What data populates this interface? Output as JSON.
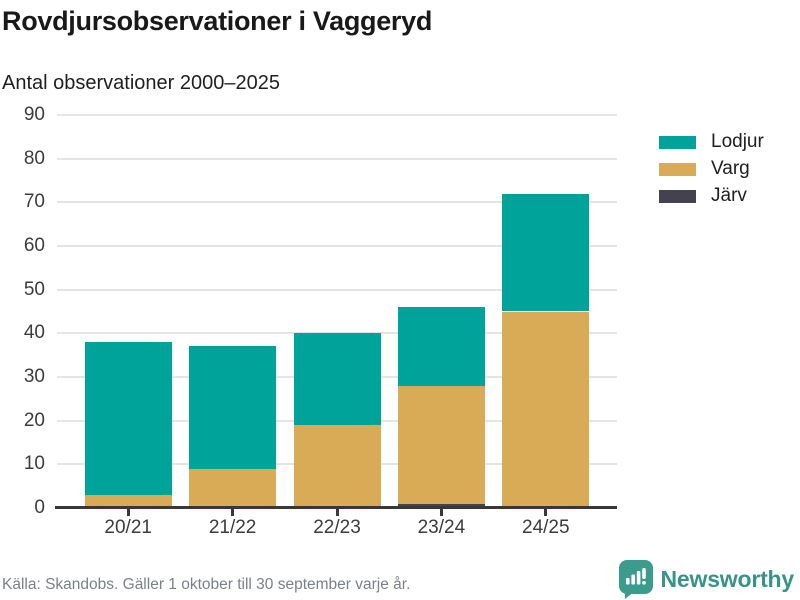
{
  "header": {
    "title": "Rovdjursobservationer i Vaggeryd",
    "subtitle": "Antal observationer 2000–2025"
  },
  "chart_data": {
    "type": "bar",
    "stacked": true,
    "title": "Rovdjursobservationer i Vaggeryd",
    "subtitle": "Antal observationer 2000–2025",
    "categories": [
      "20/21",
      "21/22",
      "22/23",
      "23/24",
      "24/25"
    ],
    "series": [
      {
        "name": "Lodjur",
        "color": "#00a39a",
        "values": [
          35,
          28,
          21,
          18,
          27
        ]
      },
      {
        "name": "Varg",
        "color": "#d9ab57",
        "values": [
          3,
          9,
          19,
          27,
          45
        ]
      },
      {
        "name": "Järv",
        "color": "#454250",
        "values": [
          0,
          0,
          0,
          1,
          0
        ]
      }
    ],
    "stack_order_bottom_to_top": [
      "Järv",
      "Varg",
      "Lodjur"
    ],
    "totals": [
      38,
      37,
      40,
      46,
      72
    ],
    "xlabel": "",
    "ylabel": "",
    "ylim": [
      0,
      90
    ],
    "ytick_step": 10,
    "grid": true,
    "legend_position": "right",
    "colors": {
      "grid": "#e4e4e4",
      "axis": "#383838",
      "tick_labels": "#3c3c3c"
    }
  },
  "footer": {
    "source": "Källa: Skandobs. Gäller 1 oktober till 30 september varje år."
  },
  "branding": {
    "name": "Newsworthy",
    "icon": "newsworthy-speech-bubble-chart-icon",
    "color": "#38948a"
  }
}
